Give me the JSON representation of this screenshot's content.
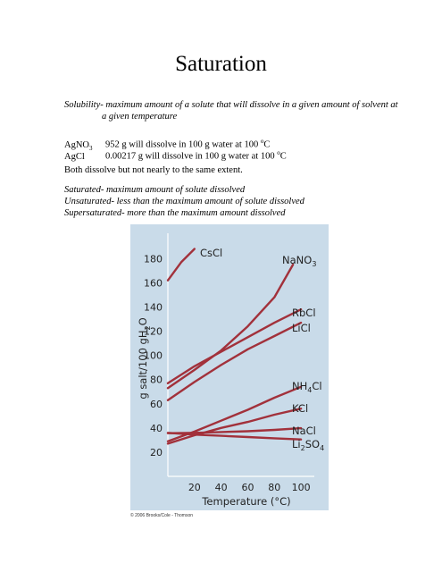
{
  "title": "Saturation",
  "solubility_def": {
    "line1": "Solubility- maximum amount of a solute that will dissolve in a given amount of solvent at",
    "line2": "a given temperature"
  },
  "examples": [
    {
      "compound": "AgNO",
      "compound_sub": "3",
      "text": "952 g will dissolve in 100 g water at 100 ",
      "deg": "o",
      "unit": "C"
    },
    {
      "compound": "AgCl",
      "compound_sub": "",
      "text": "0.00217 g will dissolve in 100 g water at 100 ",
      "deg": "o",
      "unit": "C"
    }
  ],
  "note": "Both dissolve but not nearly to the same extent.",
  "definitions": [
    "Saturated- maximum amount of solute dissolved",
    "Unsaturated- less than the maximum amount of solute dissolved",
    "Supersaturated- more than the maximum amount dissolved"
  ],
  "credit": "© 2006 Brooks/Cole - Thomson",
  "chart_data": {
    "type": "line",
    "xlabel": "Temperature (°C)",
    "ylabel": "g salt/100 gH2O",
    "xlim": [
      0,
      110
    ],
    "ylim": [
      0,
      195
    ],
    "xticks": [
      20,
      40,
      60,
      80,
      100
    ],
    "yticks": [
      20,
      40,
      60,
      80,
      100,
      120,
      140,
      160,
      180
    ],
    "background": "#c9dbe9",
    "line_color": "#a2313b",
    "series": [
      {
        "name": "CsCl",
        "label_parts": [
          [
            "CsCl",
            ""
          ]
        ],
        "x": [
          0,
          10,
          20
        ],
        "y": [
          162,
          177,
          188
        ]
      },
      {
        "name": "NaNO3",
        "label_parts": [
          [
            "NaNO",
            ""
          ],
          [
            "3",
            "sub"
          ]
        ],
        "x": [
          0,
          20,
          40,
          60,
          80,
          94
        ],
        "y": [
          73,
          88,
          104,
          124,
          148,
          175
        ]
      },
      {
        "name": "RbCl",
        "label_parts": [
          [
            "RbCl",
            ""
          ]
        ],
        "x": [
          0,
          20,
          40,
          60,
          80,
          100
        ],
        "y": [
          77,
          91,
          103,
          115,
          127,
          138
        ]
      },
      {
        "name": "LiCl",
        "label_parts": [
          [
            "LiCl",
            ""
          ]
        ],
        "x": [
          0,
          20,
          40,
          60,
          80,
          100
        ],
        "y": [
          63,
          78,
          92,
          105,
          116,
          127
        ]
      },
      {
        "name": "NH4Cl",
        "label_parts": [
          [
            "NH",
            ""
          ],
          [
            "4",
            "sub"
          ],
          [
            "Cl",
            ""
          ]
        ],
        "x": [
          0,
          20,
          40,
          60,
          80,
          100
        ],
        "y": [
          29,
          37,
          46,
          55,
          65,
          74
        ]
      },
      {
        "name": "KCl",
        "label_parts": [
          [
            "KCl",
            ""
          ]
        ],
        "x": [
          0,
          20,
          40,
          60,
          80,
          100
        ],
        "y": [
          27,
          34,
          40,
          45,
          51,
          56
        ]
      },
      {
        "name": "NaCl",
        "label_parts": [
          [
            "NaCl",
            ""
          ]
        ],
        "x": [
          0,
          20,
          40,
          60,
          80,
          100
        ],
        "y": [
          35.7,
          36.0,
          36.6,
          37.3,
          38.4,
          39.8
        ]
      },
      {
        "name": "Li2SO4",
        "label_parts": [
          [
            "Li",
            ""
          ],
          [
            "2",
            "sub"
          ],
          [
            "SO",
            ""
          ],
          [
            "4",
            "sub"
          ]
        ],
        "x": [
          0,
          20,
          40,
          60,
          80,
          100
        ],
        "y": [
          36,
          34.5,
          33.5,
          32.5,
          31.5,
          30.5
        ]
      }
    ]
  }
}
